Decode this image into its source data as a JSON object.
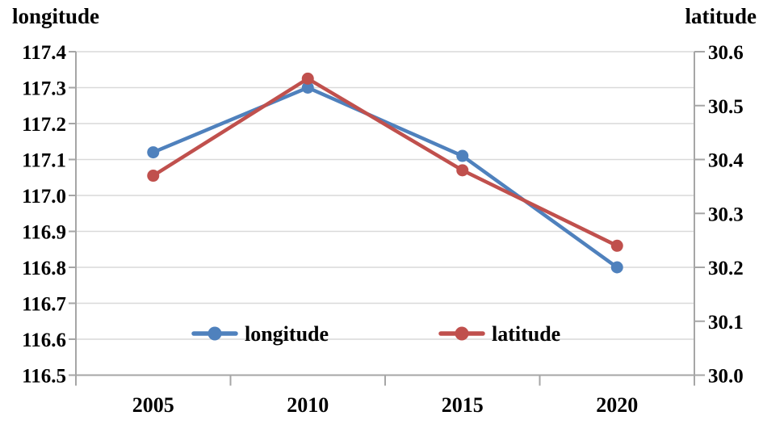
{
  "chart_data": {
    "type": "line",
    "title": "",
    "categories": [
      "2005",
      "2010",
      "2015",
      "2020"
    ],
    "series": [
      {
        "name": "longitude",
        "axis": "left",
        "color": "#4F81BD",
        "values": [
          117.12,
          117.3,
          117.11,
          116.8
        ]
      },
      {
        "name": "latitude",
        "axis": "right",
        "color": "#C0504D",
        "values": [
          30.37,
          30.55,
          30.38,
          30.24
        ]
      }
    ],
    "axes": {
      "left": {
        "label": "longitude",
        "min": 116.5,
        "max": 117.4,
        "tick_step": 0.1,
        "tick_labels": [
          "117.4",
          "117.3",
          "117.2",
          "117.1",
          "117.0",
          "116.9",
          "116.8",
          "116.7",
          "116.6",
          "116.5"
        ]
      },
      "right": {
        "label": "latitude",
        "min": 30.0,
        "max": 30.6,
        "tick_step": 0.1,
        "tick_labels": [
          "30.6",
          "30.5",
          "30.4",
          "30.3",
          "30.2",
          "30.1",
          "30.0"
        ]
      },
      "x": {
        "label": "",
        "tick_labels": [
          "2005",
          "2010",
          "2015",
          "2020"
        ]
      }
    },
    "legend": {
      "position": "inside-bottom-center",
      "entries": [
        {
          "label": "longitude",
          "color": "#4F81BD"
        },
        {
          "label": "latitude",
          "color": "#C0504D"
        }
      ]
    },
    "grid": true,
    "styles": {
      "gridline_color": "#D9D9D9",
      "axis_color": "#A6A6A6",
      "text_color": "#000000",
      "background": "#FFFFFF"
    }
  }
}
